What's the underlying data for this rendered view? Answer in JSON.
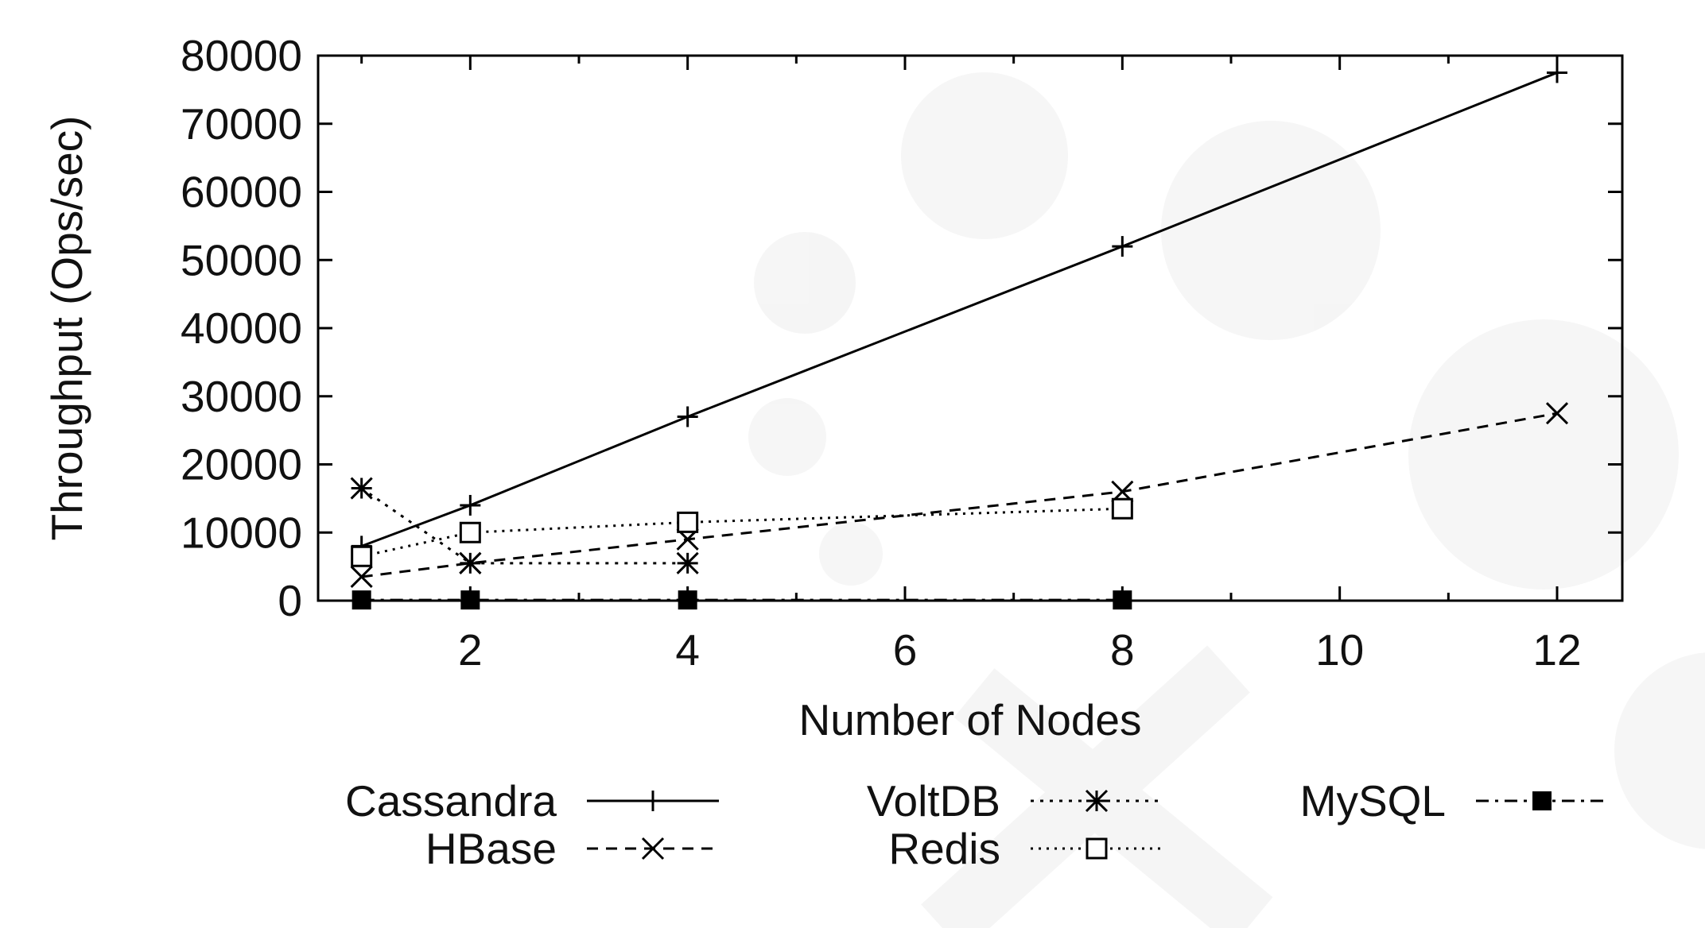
{
  "chart_data": {
    "type": "line",
    "title": "",
    "xlabel": "Number of Nodes",
    "ylabel": "Throughput (Ops/sec)",
    "xlim": [
      0.6,
      12.6
    ],
    "ylim": [
      0,
      80000
    ],
    "xticks": [
      2,
      4,
      6,
      8,
      10,
      12
    ],
    "yticks": [
      0,
      10000,
      20000,
      30000,
      40000,
      50000,
      60000,
      70000,
      80000
    ],
    "grid": false,
    "legend_position": "bottom",
    "series": [
      {
        "name": "Cassandra",
        "x": [
          1,
          2,
          4,
          8,
          12
        ],
        "y": [
          8000,
          14000,
          27000,
          52000,
          77500
        ],
        "marker": "plus",
        "dash": "solid",
        "color": "#000000"
      },
      {
        "name": "HBase",
        "x": [
          1,
          2,
          4,
          8,
          12
        ],
        "y": [
          3500,
          5500,
          9000,
          16000,
          27500
        ],
        "marker": "cross",
        "dash": "dashed",
        "color": "#000000"
      },
      {
        "name": "VoltDB",
        "x": [
          1,
          2,
          4
        ],
        "y": [
          16500,
          5500,
          5500
        ],
        "marker": "star",
        "dash": "dotdashed",
        "color": "#000000"
      },
      {
        "name": "Redis",
        "x": [
          1,
          2,
          4,
          8
        ],
        "y": [
          6500,
          10000,
          11500,
          13500
        ],
        "marker": "square-open",
        "dash": "dotted",
        "color": "#000000"
      },
      {
        "name": "MySQL",
        "x": [
          1,
          2,
          4,
          8
        ],
        "y": [
          100,
          100,
          100,
          100
        ],
        "marker": "square-filled",
        "dash": "dashdot",
        "color": "#000000"
      }
    ]
  }
}
